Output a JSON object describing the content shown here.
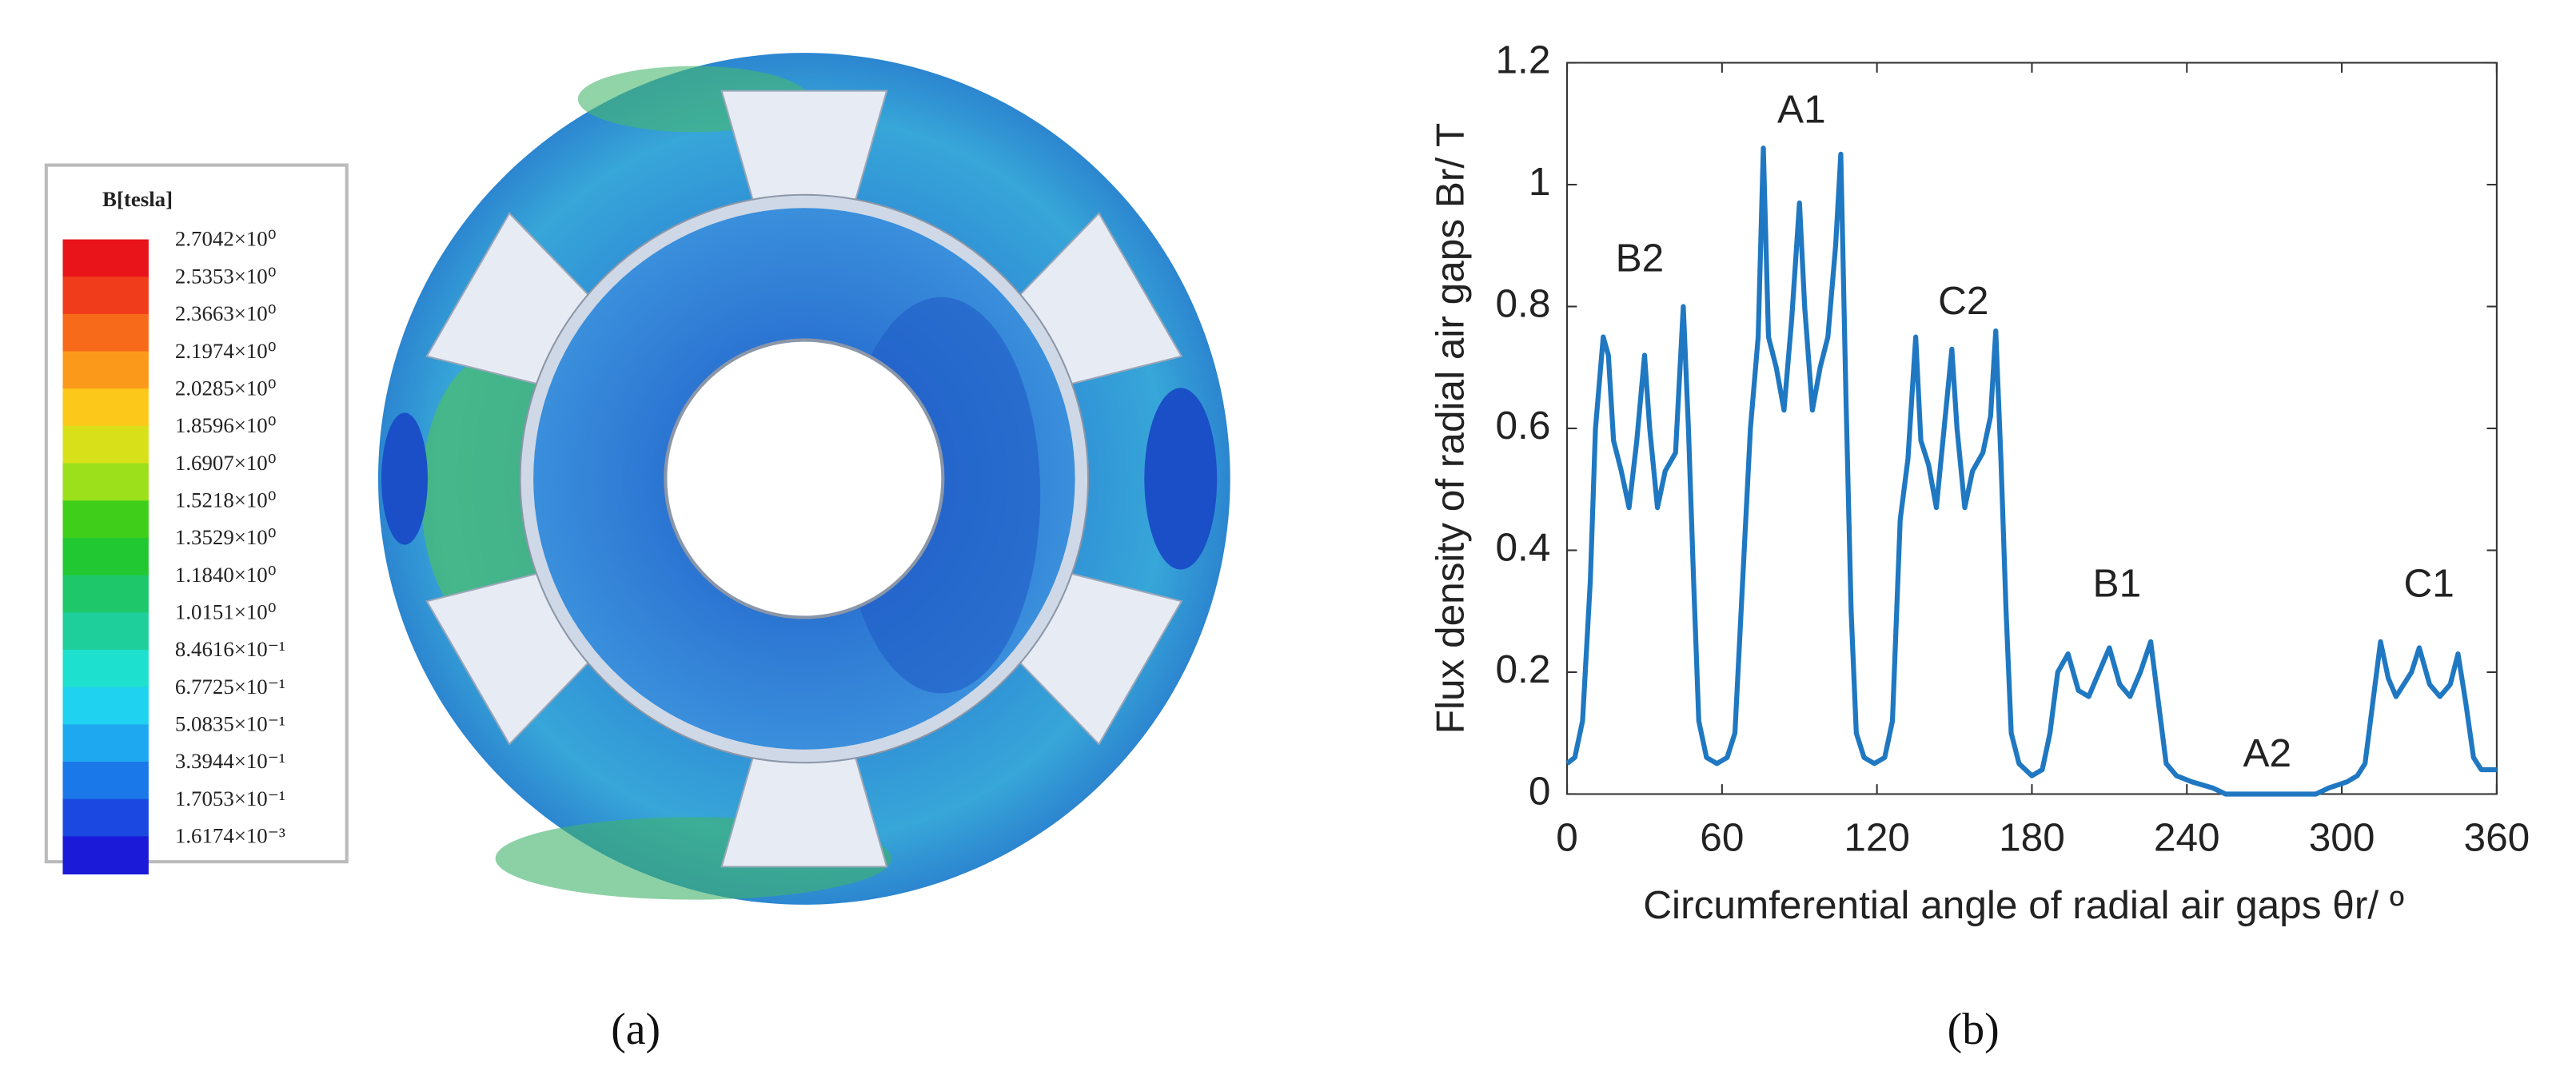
{
  "legend_panel": {
    "title": "B[tesla]",
    "labels": [
      "2.7042×10⁰",
      "2.5353×10⁰",
      "2.3663×10⁰",
      "2.1974×10⁰",
      "2.0285×10⁰",
      "1.8596×10⁰",
      "1.6907×10⁰",
      "1.5218×10⁰",
      "1.3529×10⁰",
      "1.1840×10⁰",
      "1.0151×10⁰",
      "8.4616×10⁻¹",
      "6.7725×10⁻¹",
      "5.0835×10⁻¹",
      "3.3944×10⁻¹",
      "1.7053×10⁻¹",
      "1.6174×10⁻³"
    ],
    "colors": [
      "#e8141a",
      "#f03c1a",
      "#f66a1a",
      "#fb9a1a",
      "#fcc91a",
      "#d8e01a",
      "#9be01a",
      "#3fcf1a",
      "#22c832",
      "#1ec86a",
      "#1ecf9c",
      "#1ee0cf",
      "#1ed2f0",
      "#1ea8f0",
      "#1a78e8",
      "#1a48e0",
      "#1a1ad8"
    ],
    "caption": "(a)"
  },
  "chart_data": {
    "type": "line",
    "caption": "(b)",
    "x_label": "Circumferential angle of radial air gaps θr/ º",
    "y_label": "Flux density of radial air gaps Br/ T",
    "xlim": [
      0,
      360
    ],
    "ylim": [
      0,
      1.2
    ],
    "xticks": [
      0,
      60,
      120,
      180,
      240,
      300,
      360
    ],
    "yticks": [
      0,
      0.2,
      0.4,
      0.6,
      0.8,
      1,
      1.2
    ],
    "color": "#1f78c1",
    "annotations": [
      "A1",
      "B2",
      "C2",
      "B1",
      "A2",
      "C1"
    ],
    "x": [
      0,
      3,
      6,
      9,
      11,
      14,
      16,
      18,
      21,
      24,
      27,
      30,
      32,
      35,
      38,
      42,
      45,
      47,
      49,
      51,
      54,
      58,
      62,
      65,
      68,
      71,
      74,
      76,
      78,
      81,
      84,
      87,
      90,
      92,
      95,
      98,
      101,
      104,
      106,
      108,
      110,
      112,
      115,
      119,
      123,
      126,
      129,
      132,
      135,
      137,
      140,
      143,
      146,
      149,
      151,
      154,
      157,
      161,
      164,
      166,
      168,
      170,
      172,
      175,
      180,
      184,
      187,
      190,
      194,
      198,
      202,
      206,
      210,
      214,
      218,
      222,
      226,
      229,
      232,
      236,
      242,
      250,
      255,
      290,
      295,
      302,
      306,
      309,
      312,
      315,
      318,
      321,
      324,
      327,
      330,
      334,
      338,
      342,
      345,
      348,
      351,
      354,
      360
    ],
    "values": [
      0.05,
      0.06,
      0.12,
      0.35,
      0.6,
      0.75,
      0.72,
      0.58,
      0.53,
      0.47,
      0.58,
      0.72,
      0.6,
      0.47,
      0.53,
      0.56,
      0.8,
      0.6,
      0.35,
      0.12,
      0.06,
      0.05,
      0.06,
      0.1,
      0.35,
      0.6,
      0.75,
      1.06,
      0.75,
      0.7,
      0.63,
      0.78,
      0.97,
      0.8,
      0.63,
      0.7,
      0.75,
      0.9,
      1.05,
      0.65,
      0.3,
      0.1,
      0.06,
      0.05,
      0.06,
      0.12,
      0.45,
      0.55,
      0.75,
      0.58,
      0.54,
      0.47,
      0.6,
      0.73,
      0.6,
      0.47,
      0.53,
      0.56,
      0.62,
      0.76,
      0.55,
      0.3,
      0.1,
      0.05,
      0.03,
      0.04,
      0.1,
      0.2,
      0.23,
      0.17,
      0.16,
      0.2,
      0.24,
      0.18,
      0.16,
      0.2,
      0.25,
      0.15,
      0.05,
      0.03,
      0.02,
      0.01,
      0,
      0,
      0.01,
      0.02,
      0.03,
      0.05,
      0.15,
      0.25,
      0.19,
      0.16,
      0.18,
      0.2,
      0.24,
      0.18,
      0.16,
      0.18,
      0.23,
      0.15,
      0.06,
      0.04,
      0.04
    ]
  }
}
